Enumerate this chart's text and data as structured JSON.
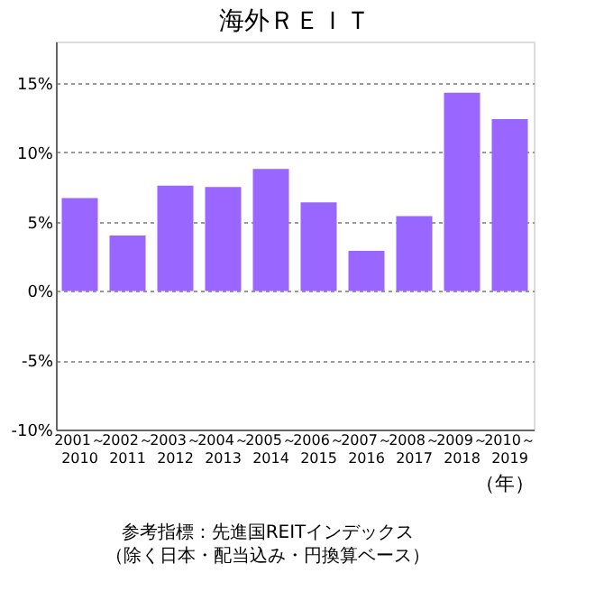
{
  "chart_data": {
    "type": "bar",
    "title": "海外ＲＥＩＴ",
    "categories": [
      "2001～\n2010",
      "2002～\n2011",
      "2003～\n2012",
      "2004～\n2013",
      "2005～\n2014",
      "2006～\n2015",
      "2007～\n2016",
      "2008～\n2017",
      "2009～\n2018",
      "2010～\n2019"
    ],
    "values": [
      6.7,
      4.0,
      7.6,
      7.5,
      8.8,
      6.4,
      2.9,
      5.4,
      14.3,
      12.4
    ],
    "color": "#9966ff",
    "xlabel": "（年）",
    "ylim": [
      -10,
      18
    ],
    "yticks": [
      {
        "value": -10,
        "label": "-10%"
      },
      {
        "value": -5,
        "label": "-5%"
      },
      {
        "value": 0,
        "label": "0%"
      },
      {
        "value": 5,
        "label": "5%"
      },
      {
        "value": 10,
        "label": "10%"
      },
      {
        "value": 15,
        "label": "15%"
      }
    ],
    "grid": "y",
    "annotations": [
      "参考指標：先進国REITインデックス（除く日本・配当込み・円換算ベース）"
    ]
  }
}
